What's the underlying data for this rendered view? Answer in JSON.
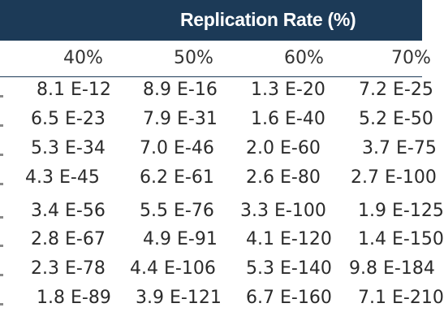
{
  "header": {
    "title": "Replication Rate (%)"
  },
  "table": {
    "columns": [
      "40%",
      "50%",
      "60%",
      "70%"
    ],
    "rows": [
      [
        "8.1 E-12",
        "8.9 E-16",
        "1.3 E-20",
        "7.2 E-25"
      ],
      [
        "6.5 E-23",
        "7.9 E-31",
        "1.6 E-40",
        "5.2 E-50"
      ],
      [
        "5.3 E-34",
        "7.0 E-46",
        "2.0 E-60",
        "3.7 E-75"
      ],
      [
        "4.3 E-45",
        "6.2 E-61",
        "2.6 E-80",
        "2.7 E-100"
      ],
      [
        "3.4 E-56",
        "5.5 E-76",
        "3.3 E-100",
        "1.9 E-125"
      ],
      [
        "2.8 E-67",
        "4.9 E-91",
        "4.1 E-120",
        "1.4 E-150"
      ],
      [
        "2.3 E-78",
        "4.4 E-106",
        "5.3 E-140",
        "9.8 E-184"
      ],
      [
        "1.8 E-89",
        "3.9 E-121",
        "6.7 E-160",
        "7.1 E-210"
      ]
    ]
  },
  "colors": {
    "header_band": "#1c3a57",
    "header_text": "#ffffff",
    "cell_text": "#2b2b2b",
    "column_header_text": "#333333",
    "rule": "#1c3a57"
  }
}
